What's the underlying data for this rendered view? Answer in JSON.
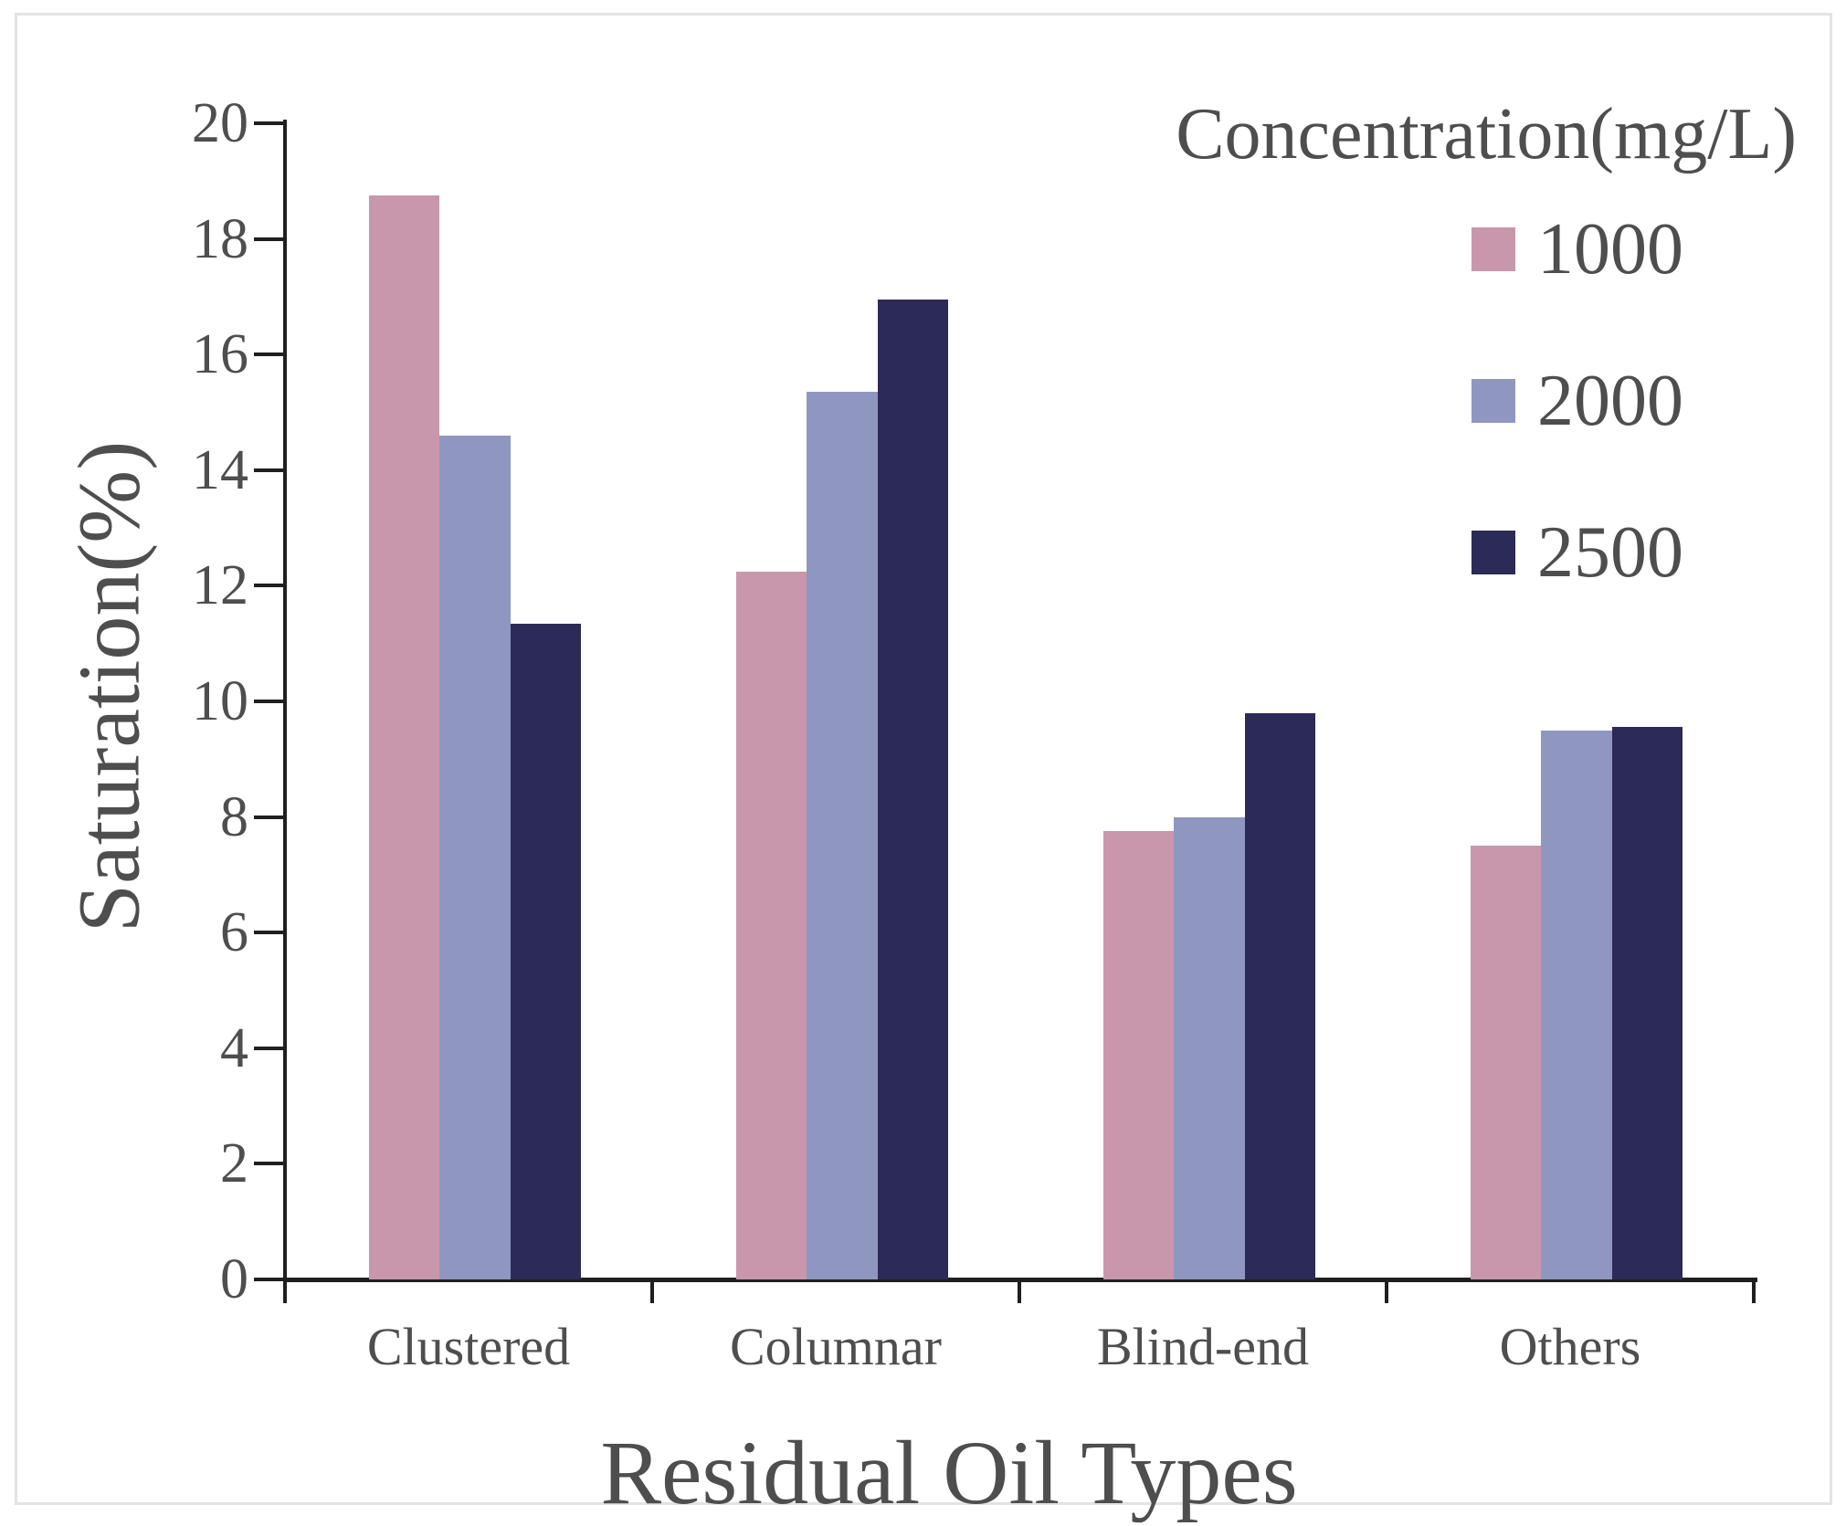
{
  "chart_data": {
    "type": "bar",
    "title": "",
    "legend_title": "Concentration(mg/L)",
    "legend_position": "top-right",
    "categories": [
      "Clustered",
      "Columnar",
      "Blind-end",
      "Others"
    ],
    "series": [
      {
        "name": "1000",
        "color": "#c897ab",
        "values": [
          18.75,
          12.25,
          7.75,
          7.5
        ]
      },
      {
        "name": "2000",
        "color": "#8f97c1",
        "values": [
          14.6,
          15.35,
          8.0,
          9.5
        ]
      },
      {
        "name": "2500",
        "color": "#2c2a56",
        "values": [
          11.35,
          16.95,
          9.8,
          9.55
        ]
      }
    ],
    "xlabel": "Residual Oil Types",
    "ylabel": "Saturation(%)",
    "ylim": [
      0,
      20
    ],
    "ytick_step": 2,
    "yticks": [
      0,
      2,
      4,
      6,
      8,
      10,
      12,
      14,
      16,
      18,
      20
    ],
    "grid": false,
    "axis_color": "#1f1f1f",
    "text_color": "#4e4e4e",
    "frame_border_color": "#e3e3e3",
    "background_color": "#ffffff"
  }
}
